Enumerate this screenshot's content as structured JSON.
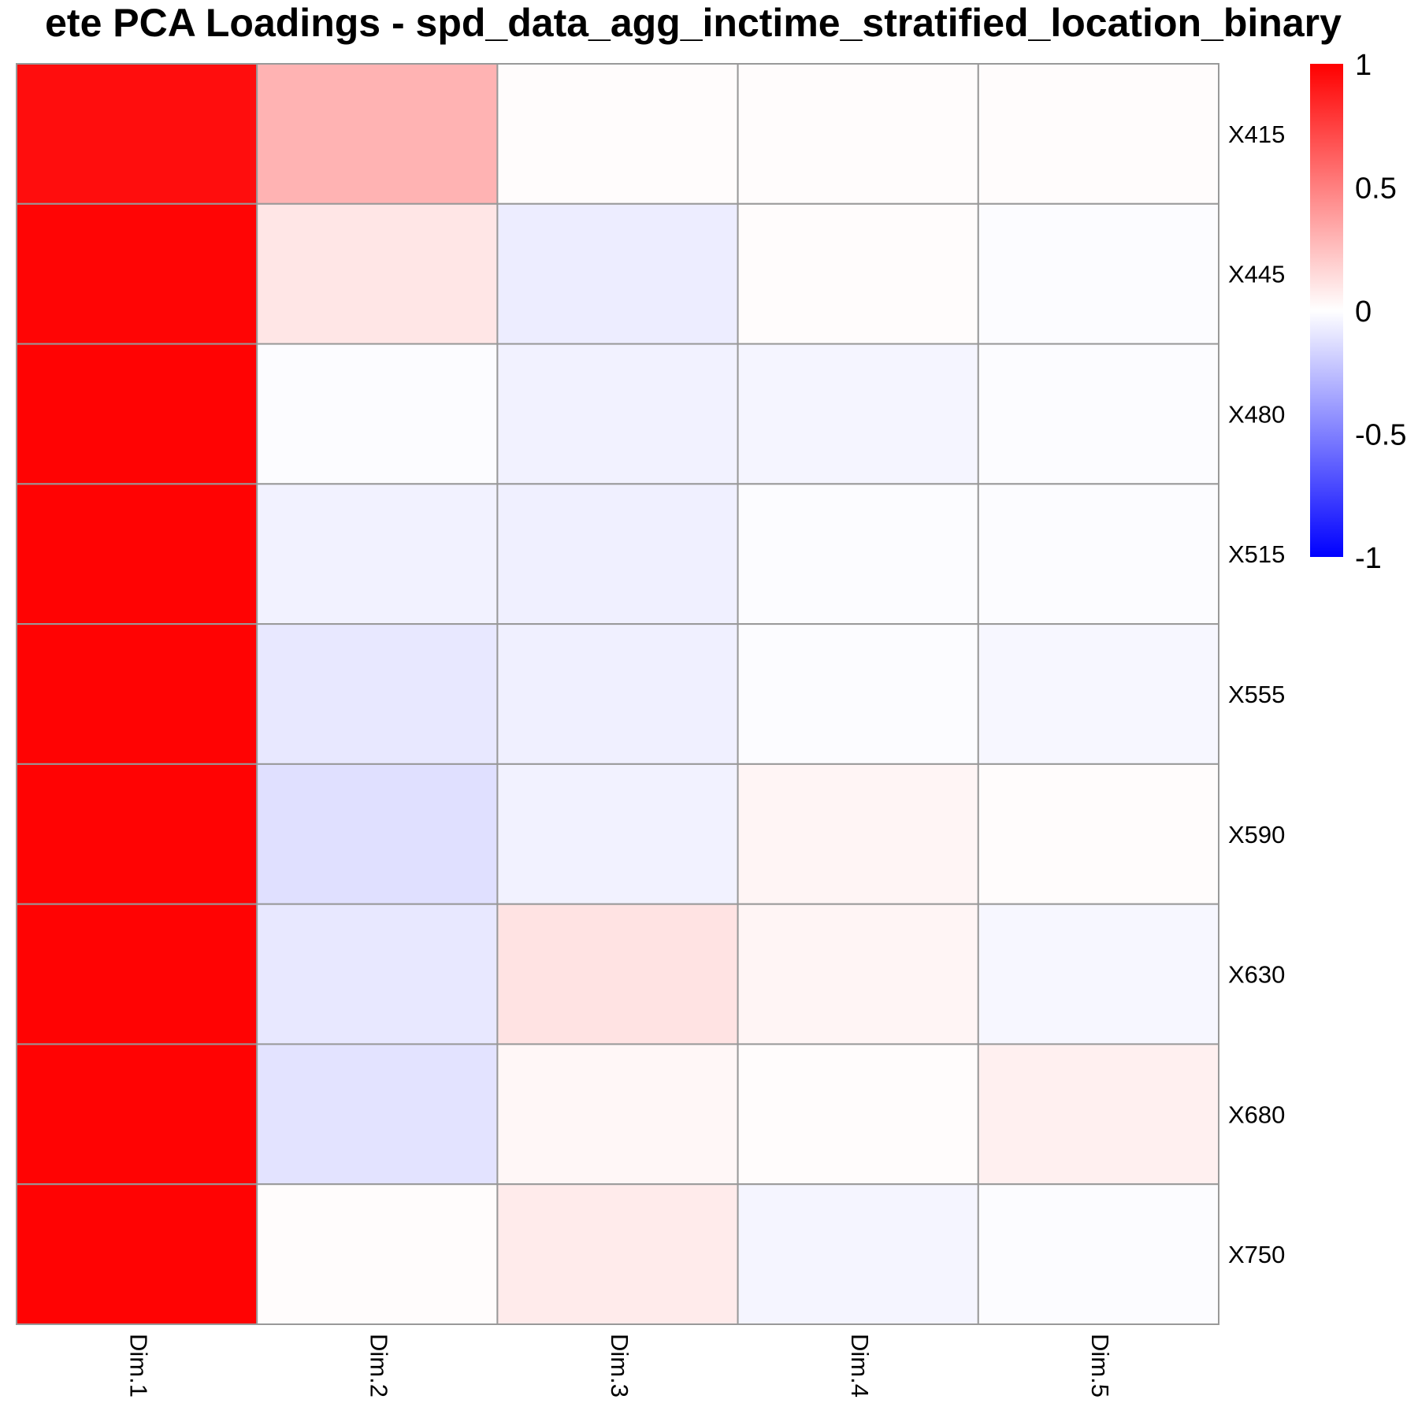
{
  "chart_data": {
    "type": "heatmap",
    "title": "ete PCA Loadings - spd_data_agg_inctime_stratified_location_binary",
    "columns": [
      "Dim.1",
      "Dim.2",
      "Dim.3",
      "Dim.4",
      "Dim.5"
    ],
    "rows": [
      "X415",
      "X445",
      "X480",
      "X515",
      "X555",
      "X590",
      "X630",
      "X680",
      "X750"
    ],
    "values": [
      [
        0.95,
        0.3,
        0.01,
        0.01,
        0.01
      ],
      [
        0.98,
        0.1,
        -0.07,
        0.01,
        -0.01
      ],
      [
        0.99,
        -0.01,
        -0.05,
        -0.04,
        -0.01
      ],
      [
        0.99,
        -0.05,
        -0.06,
        -0.01,
        -0.01
      ],
      [
        0.99,
        -0.09,
        -0.06,
        -0.01,
        -0.03
      ],
      [
        0.99,
        -0.12,
        -0.05,
        0.04,
        0.01
      ],
      [
        0.99,
        -0.09,
        0.11,
        0.04,
        -0.03
      ],
      [
        0.99,
        -0.11,
        0.03,
        0.01,
        0.06
      ],
      [
        0.99,
        0.01,
        0.08,
        -0.04,
        -0.01
      ]
    ],
    "legend": {
      "ticks": [
        1,
        0.5,
        0,
        -0.5,
        -1
      ],
      "range": [
        -1,
        1
      ],
      "placement": "right"
    },
    "colors": {
      "low": "#0000ff",
      "mid": "#ffffff",
      "high": "#ff0000",
      "cell_border": "#999999"
    }
  }
}
